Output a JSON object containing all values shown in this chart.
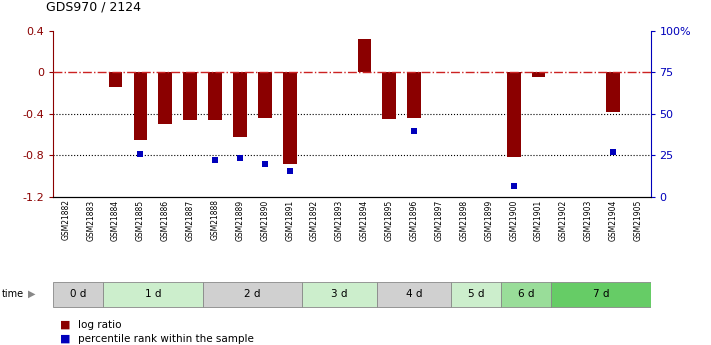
{
  "title": "GDS970 / 2124",
  "samples": [
    "GSM21882",
    "GSM21883",
    "GSM21884",
    "GSM21885",
    "GSM21886",
    "GSM21887",
    "GSM21888",
    "GSM21889",
    "GSM21890",
    "GSM21891",
    "GSM21892",
    "GSM21893",
    "GSM21894",
    "GSM21895",
    "GSM21896",
    "GSM21897",
    "GSM21898",
    "GSM21899",
    "GSM21900",
    "GSM21901",
    "GSM21902",
    "GSM21903",
    "GSM21904",
    "GSM21905"
  ],
  "log_ratio": [
    0.0,
    0.0,
    -0.14,
    -0.65,
    -0.5,
    -0.46,
    -0.46,
    -0.62,
    -0.44,
    -0.88,
    0.0,
    0.0,
    0.32,
    -0.45,
    -0.44,
    0.0,
    0.0,
    0.0,
    -0.82,
    -0.04,
    0.0,
    0.0,
    -0.38,
    0.0
  ],
  "percentile_rank": [
    null,
    null,
    null,
    -0.79,
    null,
    null,
    -0.85,
    -0.83,
    -0.88,
    -0.95,
    null,
    null,
    null,
    null,
    -0.57,
    null,
    null,
    null,
    -1.1,
    null,
    null,
    null,
    -0.77,
    null
  ],
  "time_groups": [
    {
      "label": "0 d",
      "start": 0,
      "end": 2,
      "color": "#d0d0d0"
    },
    {
      "label": "1 d",
      "start": 2,
      "end": 6,
      "color": "#cceecc"
    },
    {
      "label": "2 d",
      "start": 6,
      "end": 10,
      "color": "#d0d0d0"
    },
    {
      "label": "3 d",
      "start": 10,
      "end": 13,
      "color": "#cceecc"
    },
    {
      "label": "4 d",
      "start": 13,
      "end": 16,
      "color": "#d0d0d0"
    },
    {
      "label": "5 d",
      "start": 16,
      "end": 18,
      "color": "#cceecc"
    },
    {
      "label": "6 d",
      "start": 18,
      "end": 20,
      "color": "#99dd99"
    },
    {
      "label": "7 d",
      "start": 20,
      "end": 24,
      "color": "#66cc66"
    }
  ],
  "ylim_left": [
    -1.2,
    0.4
  ],
  "ylim_right": [
    0,
    100
  ],
  "bar_color": "#8b0000",
  "dot_color": "#0000bb",
  "dash_color": "#cc2222",
  "legend_red": "log ratio",
  "legend_blue": "percentile rank within the sample"
}
